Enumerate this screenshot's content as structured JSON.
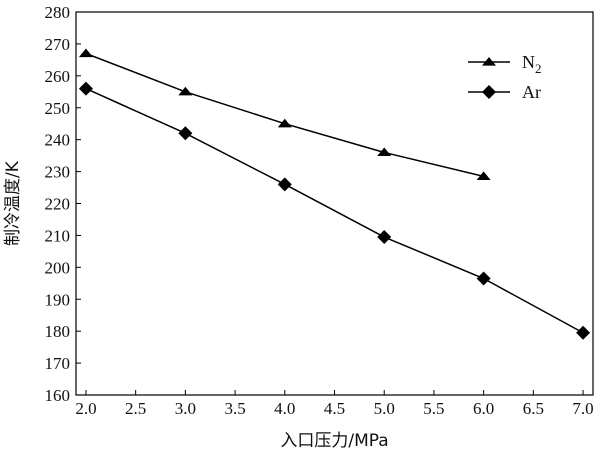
{
  "chart_data": {
    "type": "line",
    "xlabel": "入口压力/MPa",
    "ylabel": "制冷温度/K",
    "xlim": [
      1.9,
      7.1
    ],
    "ylim": [
      160,
      280
    ],
    "xticks": [
      "2.0",
      "2.5",
      "3.0",
      "3.5",
      "4.0",
      "4.5",
      "5.0",
      "5.5",
      "6.0",
      "6.5",
      "7.0"
    ],
    "yticks": [
      "160",
      "170",
      "180",
      "190",
      "200",
      "210",
      "220",
      "230",
      "240",
      "250",
      "260",
      "270",
      "280"
    ],
    "grid": false,
    "legend": "top-right",
    "series": [
      {
        "name": "N",
        "name_sub": "2",
        "marker": "triangle",
        "x": [
          2.0,
          3.0,
          4.0,
          5.0,
          6.0
        ],
        "values": [
          267,
          255,
          245,
          236,
          228.5
        ]
      },
      {
        "name": "Ar",
        "marker": "diamond",
        "x": [
          2.0,
          3.0,
          4.0,
          5.0,
          6.0,
          7.0
        ],
        "values": [
          256,
          242,
          226,
          209.5,
          196.5,
          179.5
        ]
      }
    ]
  }
}
